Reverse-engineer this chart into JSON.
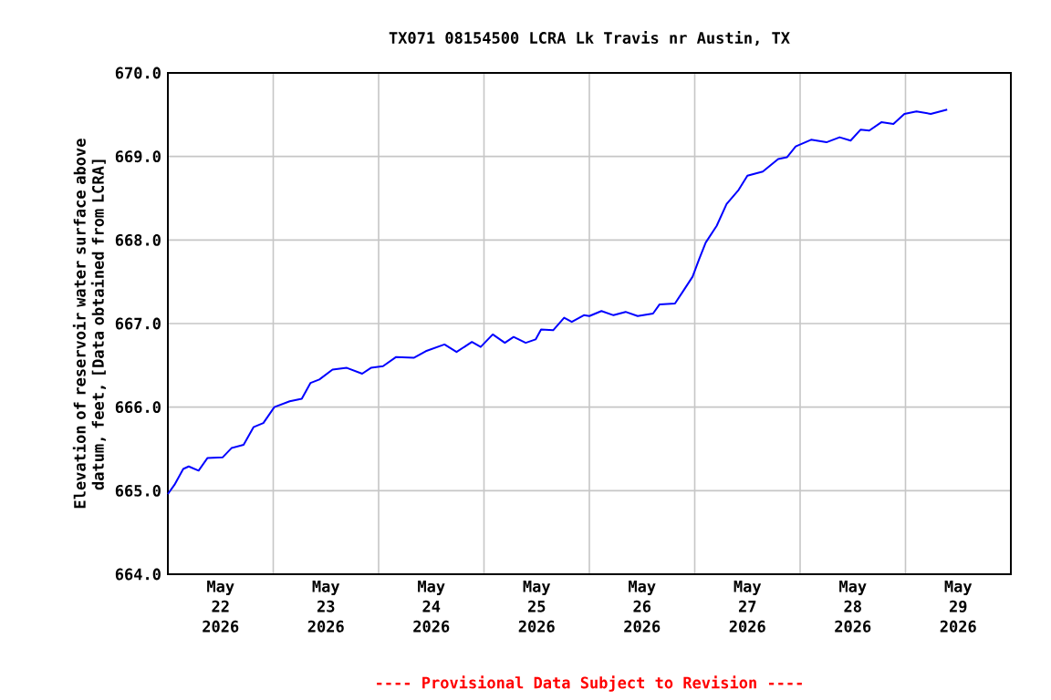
{
  "chart_data": {
    "type": "line",
    "title": "TX071 08154500 LCRA Lk Travis nr Austin, TX",
    "ylabel": "Elevation of reservoir water surface above datum, feet, [Data obtained from LCRA]",
    "annotations": [
      "---- Provisional Data Subject to Revision ----"
    ],
    "x": [
      "2026-05-22T00:00",
      "2026-05-22T01:30",
      "2026-05-22T03:30",
      "2026-05-22T04:45",
      "2026-05-22T07:00",
      "2026-05-22T09:00",
      "2026-05-22T12:30",
      "2026-05-22T14:30",
      "2026-05-22T17:15",
      "2026-05-22T19:30",
      "2026-05-22T21:45",
      "2026-05-23T00:15",
      "2026-05-23T03:45",
      "2026-05-23T06:30",
      "2026-05-23T08:30",
      "2026-05-23T10:30",
      "2026-05-23T13:30",
      "2026-05-23T16:45",
      "2026-05-23T20:15",
      "2026-05-23T22:15",
      "2026-05-24T01:00",
      "2026-05-24T04:00",
      "2026-05-24T08:00",
      "2026-05-24T10:45",
      "2026-05-24T15:00",
      "2026-05-24T17:45",
      "2026-05-24T21:15",
      "2026-05-24T23:15",
      "2026-05-25T02:00",
      "2026-05-25T04:45",
      "2026-05-25T06:45",
      "2026-05-25T09:30",
      "2026-05-25T11:45",
      "2026-05-25T13:00",
      "2026-05-25T15:45",
      "2026-05-25T18:15",
      "2026-05-25T20:00",
      "2026-05-25T22:45",
      "2026-05-26T00:00",
      "2026-05-26T02:45",
      "2026-05-26T05:30",
      "2026-05-26T08:15",
      "2026-05-26T11:00",
      "2026-05-26T14:30",
      "2026-05-26T16:00",
      "2026-05-26T19:30",
      "2026-05-26T21:30",
      "2026-05-26T23:30",
      "2026-05-27T01:00",
      "2026-05-27T02:30",
      "2026-05-27T05:00",
      "2026-05-27T07:15",
      "2026-05-27T10:00",
      "2026-05-27T12:00",
      "2026-05-27T15:30",
      "2026-05-27T19:00",
      "2026-05-27T21:00",
      "2026-05-27T23:00",
      "2026-05-28T02:30",
      "2026-05-28T06:00",
      "2026-05-28T09:00",
      "2026-05-28T11:30",
      "2026-05-28T13:45",
      "2026-05-28T15:45",
      "2026-05-28T18:30",
      "2026-05-28T21:15",
      "2026-05-28T23:45",
      "2026-05-29T02:30",
      "2026-05-29T05:45",
      "2026-05-29T09:30"
    ],
    "series": [
      {
        "color": "#0000ff",
        "values": [
          664.96,
          665.07,
          665.26,
          665.29,
          665.24,
          665.39,
          665.4,
          665.51,
          665.55,
          665.76,
          665.81,
          666.0,
          666.07,
          666.1,
          666.29,
          666.33,
          666.45,
          666.47,
          666.4,
          666.47,
          666.49,
          666.6,
          666.59,
          666.67,
          666.75,
          666.66,
          666.78,
          666.72,
          666.87,
          666.77,
          666.84,
          666.77,
          666.81,
          666.93,
          666.92,
          667.07,
          667.02,
          667.1,
          667.09,
          667.15,
          667.1,
          667.14,
          667.09,
          667.12,
          667.23,
          667.24,
          667.4,
          667.56,
          667.77,
          667.97,
          668.17,
          668.43,
          668.6,
          668.77,
          668.82,
          668.97,
          668.99,
          669.12,
          669.2,
          669.17,
          669.23,
          669.19,
          669.32,
          669.31,
          669.41,
          669.39,
          669.51,
          669.54,
          669.51,
          669.56
        ]
      }
    ],
    "xlim": [
      "2026-05-22T00:00",
      "2026-05-30T00:00"
    ],
    "xticks": [
      {
        "value": "2026-05-22T12:00",
        "label": "May 22 2026"
      },
      {
        "value": "2026-05-23T12:00",
        "label": "May 23 2026"
      },
      {
        "value": "2026-05-24T12:00",
        "label": "May 24 2026"
      },
      {
        "value": "2026-05-25T12:00",
        "label": "May 25 2026"
      },
      {
        "value": "2026-05-26T12:00",
        "label": "May 26 2026"
      },
      {
        "value": "2026-05-27T12:00",
        "label": "May 27 2026"
      },
      {
        "value": "2026-05-28T12:00",
        "label": "May 28 2026"
      },
      {
        "value": "2026-05-29T12:00",
        "label": "May 29 2026"
      },
      {
        "value": "2026-05-23T00:00",
        "label": null
      },
      {
        "value": "2026-05-24T00:00",
        "label": null
      },
      {
        "value": "2026-05-25T00:00",
        "label": null
      },
      {
        "value": "2026-05-26T00:00",
        "label": null
      },
      {
        "value": "2026-05-27T00:00",
        "label": null
      },
      {
        "value": "2026-05-28T00:00",
        "label": null
      },
      {
        "value": "2026-05-29T00:00",
        "label": null
      }
    ],
    "ylim": [
      664,
      670
    ],
    "yticks": [
      {
        "value": 664,
        "label": "664.0"
      },
      {
        "value": 665,
        "label": "665.0"
      },
      {
        "value": 666,
        "label": "666.0"
      },
      {
        "value": 667,
        "label": "667.0"
      },
      {
        "value": 668,
        "label": "668.0"
      },
      {
        "value": 669,
        "label": "669.0"
      },
      {
        "value": 670,
        "label": "670.0"
      }
    ],
    "grid": true
  }
}
